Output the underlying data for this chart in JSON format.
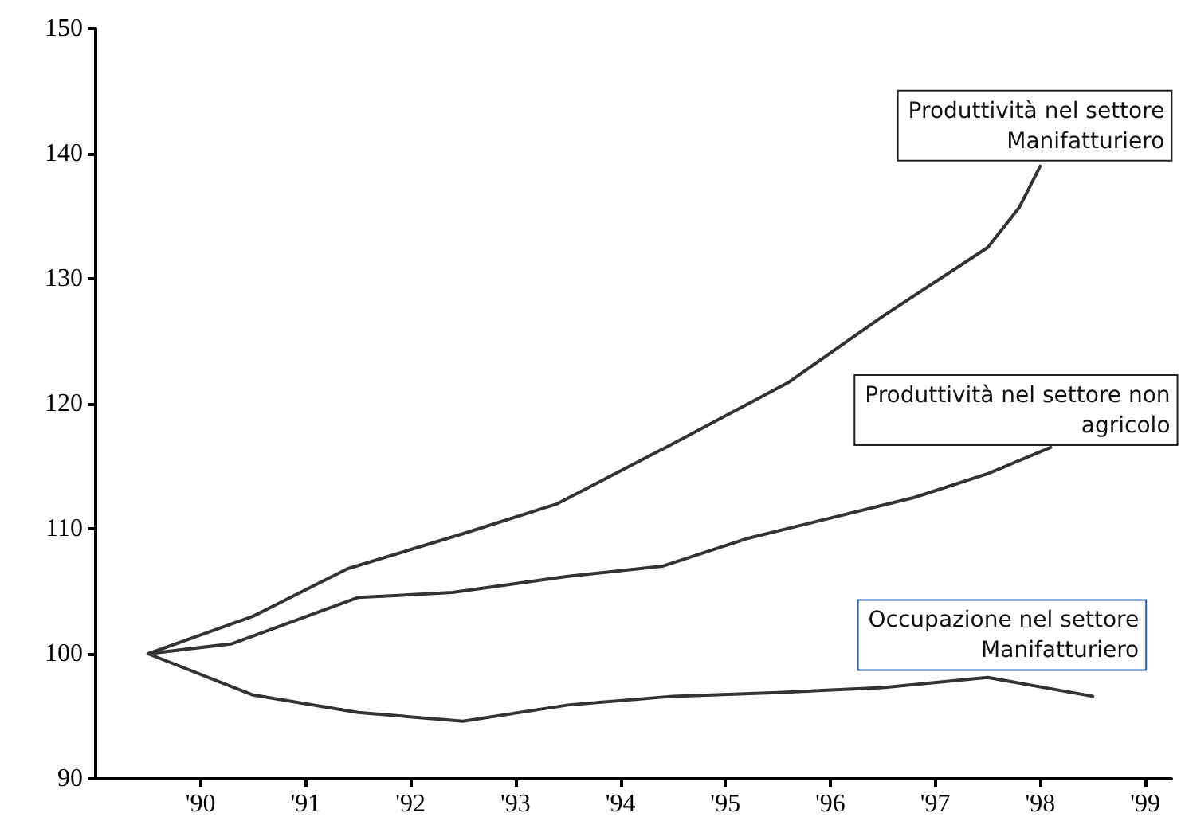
{
  "chart_data": {
    "type": "line",
    "xlim": [
      1989,
      1999.25
    ],
    "ylim": [
      90,
      150
    ],
    "xticks": [
      {
        "value": 1990,
        "label": "'90"
      },
      {
        "value": 1991,
        "label": "'91"
      },
      {
        "value": 1992,
        "label": "'92"
      },
      {
        "value": 1993,
        "label": "'93"
      },
      {
        "value": 1994,
        "label": "'94"
      },
      {
        "value": 1995,
        "label": "'95"
      },
      {
        "value": 1996,
        "label": "'96"
      },
      {
        "value": 1997,
        "label": "'97"
      },
      {
        "value": 1998,
        "label": "'98"
      },
      {
        "value": 1999,
        "label": "'99"
      }
    ],
    "yticks": [
      90,
      100,
      110,
      120,
      130,
      140,
      150
    ],
    "grid": false,
    "legend": false,
    "marker": "none",
    "line_style": "solid",
    "series": [
      {
        "name": "Produttività nel settore Manifatturiero",
        "color": "#333333",
        "x": [
          1989.5,
          1990.5,
          1991.4,
          1992.5,
          1993.4,
          1994.5,
          1995.6,
          1996.5,
          1997.5,
          1997.8,
          1998
        ],
        "values": [
          100,
          103,
          106.8,
          109.6,
          112,
          116.8,
          121.7,
          127,
          132.5,
          135.7,
          139
        ]
      },
      {
        "name": "Produttività nel settore non agricolo",
        "color": "#333333",
        "x": [
          1989.5,
          1990.3,
          1991.5,
          1992.4,
          1993.5,
          1994.4,
          1995.2,
          1996.8,
          1997.5,
          1998.1
        ],
        "values": [
          100,
          100.8,
          104.5,
          104.9,
          106.2,
          107,
          109.2,
          112.5,
          114.4,
          116.5
        ]
      },
      {
        "name": "Occupazione nel settore Manifatturiero",
        "color": "#333333",
        "x": [
          1989.5,
          1990.5,
          1991.5,
          1992.5,
          1993.5,
          1994.5,
          1995.5,
          1996.5,
          1997.5,
          1998.5
        ],
        "values": [
          100,
          96.7,
          95.3,
          94.6,
          95.9,
          96.6,
          96.9,
          97.3,
          98.1,
          96.6
        ]
      }
    ]
  }
}
